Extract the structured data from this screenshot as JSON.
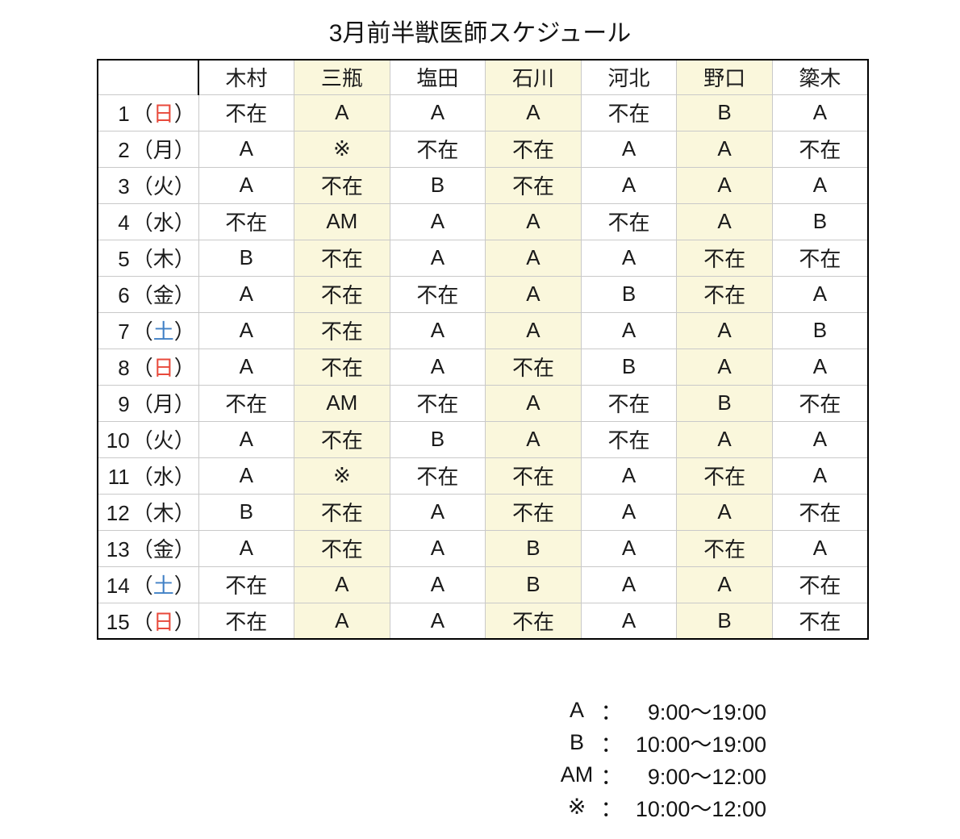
{
  "title": "3月前半獣医師スケジュール",
  "schedule": {
    "corner_label": "",
    "doctors": [
      "木村",
      "三瓶",
      "塩田",
      "石川",
      "河北",
      "野口",
      "簗木"
    ],
    "highlighted_columns": [
      1,
      3,
      5
    ],
    "absent_label": "不在",
    "sunday_char": "日",
    "saturday_char": "土",
    "paren_open": "（",
    "paren_close": "）",
    "days": [
      {
        "date": "1",
        "weekday": "日",
        "cells": [
          "不在",
          "A",
          "A",
          "A",
          "不在",
          "B",
          "A"
        ]
      },
      {
        "date": "2",
        "weekday": "月",
        "cells": [
          "A",
          "※",
          "不在",
          "不在",
          "A",
          "A",
          "不在"
        ]
      },
      {
        "date": "3",
        "weekday": "火",
        "cells": [
          "A",
          "不在",
          "B",
          "不在",
          "A",
          "A",
          "A"
        ]
      },
      {
        "date": "4",
        "weekday": "水",
        "cells": [
          "不在",
          "AM",
          "A",
          "A",
          "不在",
          "A",
          "B"
        ]
      },
      {
        "date": "5",
        "weekday": "木",
        "cells": [
          "B",
          "不在",
          "A",
          "A",
          "A",
          "不在",
          "不在"
        ]
      },
      {
        "date": "6",
        "weekday": "金",
        "cells": [
          "A",
          "不在",
          "不在",
          "A",
          "B",
          "不在",
          "A"
        ]
      },
      {
        "date": "7",
        "weekday": "土",
        "cells": [
          "A",
          "不在",
          "A",
          "A",
          "A",
          "A",
          "B"
        ]
      },
      {
        "date": "8",
        "weekday": "日",
        "cells": [
          "A",
          "不在",
          "A",
          "不在",
          "B",
          "A",
          "A"
        ]
      },
      {
        "date": "9",
        "weekday": "月",
        "cells": [
          "不在",
          "AM",
          "不在",
          "A",
          "不在",
          "B",
          "不在"
        ]
      },
      {
        "date": "10",
        "weekday": "火",
        "cells": [
          "A",
          "不在",
          "B",
          "A",
          "不在",
          "A",
          "A"
        ]
      },
      {
        "date": "11",
        "weekday": "水",
        "cells": [
          "A",
          "※",
          "不在",
          "不在",
          "A",
          "不在",
          "A"
        ]
      },
      {
        "date": "12",
        "weekday": "木",
        "cells": [
          "B",
          "不在",
          "A",
          "不在",
          "A",
          "A",
          "不在"
        ]
      },
      {
        "date": "13",
        "weekday": "金",
        "cells": [
          "A",
          "不在",
          "A",
          "B",
          "A",
          "不在",
          "A"
        ]
      },
      {
        "date": "14",
        "weekday": "土",
        "cells": [
          "不在",
          "A",
          "A",
          "B",
          "A",
          "A",
          "不在"
        ]
      },
      {
        "date": "15",
        "weekday": "日",
        "cells": [
          "不在",
          "A",
          "A",
          "不在",
          "A",
          "B",
          "不在"
        ]
      }
    ]
  },
  "legend": [
    {
      "symbol": "A",
      "separator": "：",
      "time": "9:00～19:00"
    },
    {
      "symbol": "B",
      "separator": "：",
      "time": "10:00～19:00"
    },
    {
      "symbol": "AM",
      "separator": "：",
      "time": "9:00～12:00"
    },
    {
      "symbol": "※",
      "separator": "：",
      "time": "10:00～12:00"
    }
  ],
  "colors": {
    "absent_red": "#e8493b",
    "sunday_red": "#e8493b",
    "saturday_blue": "#4181c6",
    "column_highlight": "#faf7dc",
    "grid_line": "#c9c9c9",
    "frame_line": "#000000"
  }
}
